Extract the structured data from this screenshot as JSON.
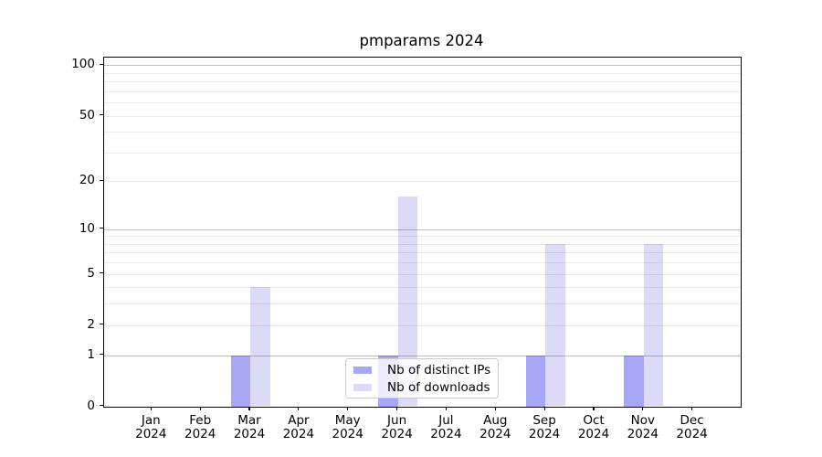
{
  "title": "pmparams 2024",
  "chart_data": {
    "type": "bar",
    "title": "pmparams 2024",
    "x_tick_months": [
      "Jan",
      "Feb",
      "Mar",
      "Apr",
      "May",
      "Jun",
      "Jul",
      "Aug",
      "Sep",
      "Oct",
      "Nov",
      "Dec"
    ],
    "x_tick_year": "2024",
    "series": [
      {
        "name": "Nb of distinct IPs",
        "color": "#a7a7f5",
        "values": [
          0,
          0,
          1,
          0,
          0,
          1,
          0,
          0,
          1,
          0,
          1,
          0
        ]
      },
      {
        "name": "Nb of downloads",
        "color": "#dbdbf8",
        "values": [
          0,
          0,
          4,
          0,
          0,
          16,
          0,
          0,
          8,
          0,
          8,
          0
        ]
      }
    ],
    "yscale": "log1p",
    "ylim": [
      0,
      111
    ],
    "yticks": [
      0,
      1,
      2,
      5,
      10,
      20,
      50,
      100
    ],
    "minor_gridlines": [
      3,
      4,
      6,
      7,
      8,
      9,
      30,
      40,
      60,
      70,
      80,
      90
    ],
    "grid": true,
    "legend_position": "lower-center-inside"
  },
  "colors": {
    "background": "#ffffff",
    "spine": "#000000",
    "decade_gridline": "rgba(0,0,0,0.25)",
    "minor_gridline": "rgba(0,0,0,0.08)",
    "legend_border": "#cccccc"
  }
}
